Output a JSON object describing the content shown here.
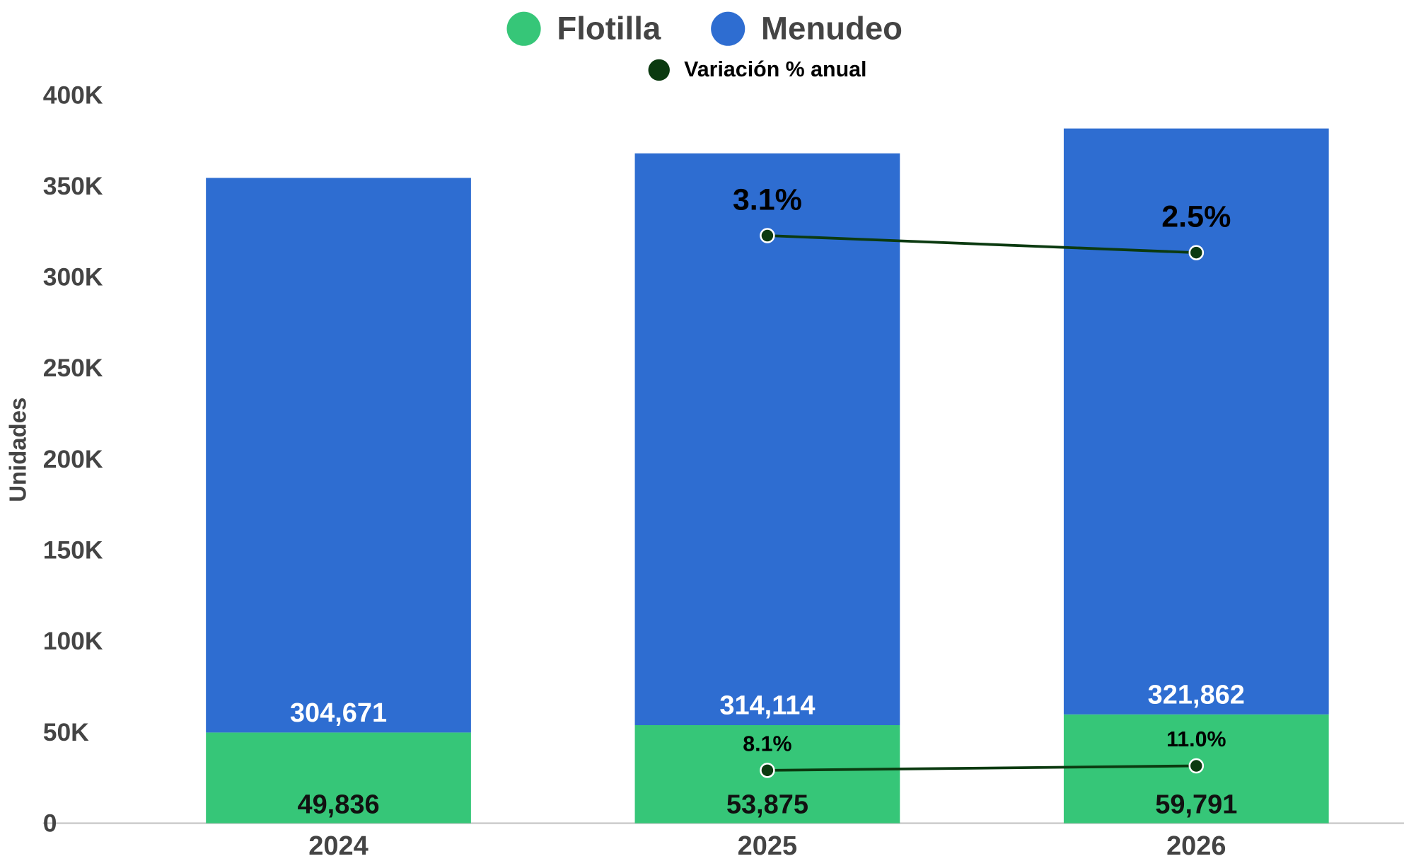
{
  "chart_data": {
    "type": "bar",
    "stacked": true,
    "categories": [
      "2024",
      "2025",
      "2026"
    ],
    "y_label": "Unidades",
    "ylim": [
      0,
      400000
    ],
    "yticks": [
      0,
      {
        "value": 50000,
        "label": "50K"
      },
      {
        "value": 100000,
        "label": "100K"
      },
      {
        "value": 150000,
        "label": "150K"
      },
      {
        "value": 200000,
        "label": "200K"
      },
      {
        "value": 250000,
        "label": "250K"
      },
      {
        "value": 300000,
        "label": "300K"
      },
      {
        "value": 350000,
        "label": "350K"
      },
      {
        "value": 400000,
        "label": "400K"
      }
    ],
    "series": [
      {
        "name": "Flotilla",
        "color": "#36c678",
        "label_color": "#111111",
        "values": [
          49836,
          53875,
          59791
        ],
        "value_labels": [
          "49,836",
          "53,875",
          "59,791"
        ]
      },
      {
        "name": "Menudeo",
        "color": "#2e6dd1",
        "label_color": "#ffffff",
        "values": [
          304671,
          314114,
          321862
        ],
        "value_labels": [
          "304,671",
          "314,114",
          "321,862"
        ]
      }
    ],
    "lines": {
      "type": "line",
      "name": "Variación % anual",
      "color": "#0b3a10",
      "series": [
        {
          "values": [
            null,
            3.1,
            2.5
          ],
          "value_labels": [
            null,
            "3.1%",
            "2.5%"
          ],
          "y2lim": [
            -17.6,
            8.05
          ]
        },
        {
          "values": [
            null,
            8.1,
            11.0
          ],
          "value_labels": [
            null,
            "8.1%",
            "11.0%"
          ],
          "y2lim": [
            -26.2,
            446
          ]
        }
      ]
    }
  }
}
